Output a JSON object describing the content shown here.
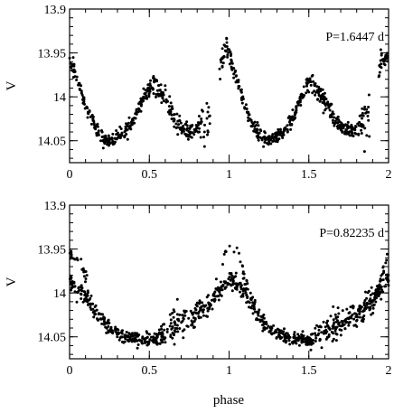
{
  "figure": {
    "xlabel": "phase"
  },
  "chart_data": [
    {
      "type": "scatter",
      "title": "",
      "xlabel": "",
      "ylabel": "V",
      "annotation": "P=1.6447 d",
      "xlim": [
        0,
        2
      ],
      "ylim": [
        14.075,
        13.9
      ],
      "y_inverted": true,
      "grid": false,
      "xticks": [
        0,
        0.5,
        1,
        1.5,
        2
      ],
      "xtick_labels": [
        "0",
        "0.5",
        "1",
        "1.5",
        "2"
      ],
      "yticks": [
        13.9,
        13.95,
        14,
        14.05
      ],
      "ytick_labels": [
        "13.9",
        "13.95",
        "14",
        "14.05"
      ],
      "series": [
        {
          "values_description_free": true,
          "x": [
            0.0,
            0.05,
            0.1,
            0.15,
            0.2,
            0.25,
            0.3,
            0.35,
            0.4,
            0.45,
            0.5,
            0.53,
            0.55,
            0.6,
            0.65,
            0.7,
            0.75,
            0.8,
            0.85,
            0.9,
            0.95,
            0.98,
            1.0,
            1.05,
            1.1,
            1.15,
            1.2,
            1.25,
            1.3,
            1.35,
            1.4,
            1.45,
            1.5,
            1.53,
            1.55,
            1.6,
            1.65,
            1.7,
            1.75,
            1.8,
            1.85,
            1.9,
            1.95,
            2.0
          ],
          "y": [
            13.96,
            13.98,
            14.01,
            14.03,
            14.045,
            14.05,
            14.045,
            14.04,
            14.025,
            14.005,
            13.99,
            13.985,
            13.99,
            14.0,
            14.02,
            14.035,
            14.04,
            14.035,
            14.025,
            14.025,
            13.96,
            13.945,
            13.95,
            13.98,
            14.01,
            14.035,
            14.045,
            14.05,
            14.045,
            14.04,
            14.025,
            14.0,
            13.985,
            13.985,
            13.99,
            14.005,
            14.02,
            14.035,
            14.04,
            14.035,
            14.025,
            14.025,
            13.96,
            13.955
          ],
          "scatter": [
            0.004,
            0.004,
            0.004,
            0.004,
            0.004,
            0.004,
            0.004,
            0.004,
            0.004,
            0.004,
            0.006,
            0.006,
            0.006,
            0.006,
            0.005,
            0.004,
            0.004,
            0.004,
            0.013,
            0.013,
            0.006,
            0.005,
            0.005,
            0.004,
            0.004,
            0.004,
            0.004,
            0.004,
            0.004,
            0.004,
            0.004,
            0.004,
            0.006,
            0.006,
            0.006,
            0.006,
            0.005,
            0.004,
            0.004,
            0.004,
            0.013,
            0.013,
            0.006,
            0.006
          ],
          "gaps": [
            [
              0.88,
              0.94
            ],
            [
              1.88,
              1.93
            ]
          ]
        }
      ]
    },
    {
      "type": "scatter",
      "title": "",
      "xlabel": "phase",
      "ylabel": "V",
      "annotation": "P=0.82235 d",
      "xlim": [
        0,
        2
      ],
      "ylim": [
        14.075,
        13.9
      ],
      "y_inverted": true,
      "grid": false,
      "xticks": [
        0,
        0.5,
        1,
        1.5,
        2
      ],
      "xtick_labels": [
        "0",
        "0.5",
        "1",
        "1.5",
        "2"
      ],
      "yticks": [
        13.9,
        13.95,
        14,
        14.05
      ],
      "ytick_labels": [
        "13.9",
        "13.95",
        "14",
        "14.05"
      ],
      "series": [
        {
          "x": [
            0.0,
            0.05,
            0.1,
            0.15,
            0.2,
            0.25,
            0.3,
            0.35,
            0.4,
            0.45,
            0.5,
            0.55,
            0.6,
            0.65,
            0.7,
            0.75,
            0.8,
            0.85,
            0.9,
            0.95,
            1.0,
            1.05,
            1.1,
            1.15,
            1.2,
            1.25,
            1.3,
            1.35,
            1.4,
            1.45,
            1.5,
            1.55,
            1.6,
            1.65,
            1.7,
            1.75,
            1.8,
            1.85,
            1.9,
            1.95,
            2.0
          ],
          "y": [
            13.985,
            13.995,
            14.005,
            14.02,
            14.03,
            14.04,
            14.045,
            14.05,
            14.052,
            14.053,
            14.055,
            14.05,
            14.045,
            14.04,
            14.035,
            14.03,
            14.025,
            14.015,
            14.005,
            13.995,
            13.985,
            13.99,
            14.0,
            14.015,
            14.03,
            14.04,
            14.045,
            14.05,
            14.052,
            14.053,
            14.055,
            14.05,
            14.045,
            14.04,
            14.035,
            14.03,
            14.025,
            14.015,
            14.005,
            13.995,
            13.985
          ],
          "scatter": [
            0.005,
            0.005,
            0.005,
            0.005,
            0.004,
            0.004,
            0.004,
            0.004,
            0.004,
            0.004,
            0.004,
            0.005,
            0.007,
            0.008,
            0.008,
            0.007,
            0.007,
            0.006,
            0.006,
            0.006,
            0.005,
            0.005,
            0.005,
            0.005,
            0.004,
            0.004,
            0.004,
            0.004,
            0.004,
            0.004,
            0.004,
            0.005,
            0.007,
            0.008,
            0.008,
            0.007,
            0.007,
            0.006,
            0.006,
            0.006,
            0.005
          ]
        },
        {
          "x": [
            0.0,
            0.03,
            0.06,
            0.1,
            0.9,
            0.95,
            0.98,
            1.0,
            1.02,
            1.05,
            1.08,
            1.1,
            1.9,
            1.95,
            1.98,
            2.0
          ],
          "y": [
            13.955,
            13.96,
            13.965,
            13.98,
            14.02,
            13.97,
            13.955,
            13.95,
            13.952,
            13.955,
            13.965,
            13.985,
            14.02,
            13.98,
            13.965,
            13.955
          ],
          "scatter": [
            0.003,
            0.003,
            0.003,
            0.004,
            0.004,
            0.004,
            0.003,
            0.003,
            0.003,
            0.003,
            0.004,
            0.004,
            0.004,
            0.004,
            0.003,
            0.003
          ]
        }
      ]
    }
  ]
}
